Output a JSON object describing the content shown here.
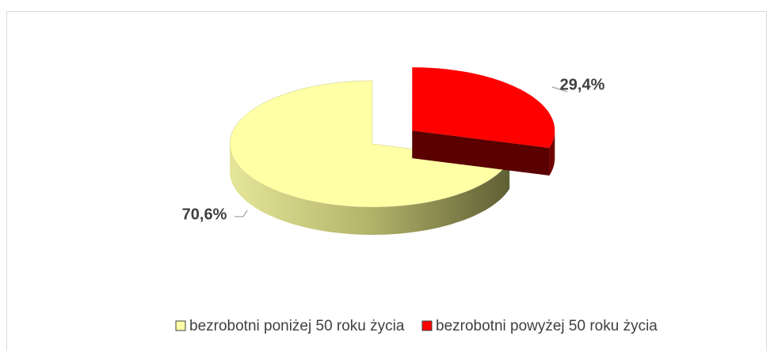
{
  "chart_data": {
    "type": "pie",
    "categories": [
      "bezrobotni poniżej 50 roku życia",
      "bezrobotni powyżej 50 roku życia"
    ],
    "values": [
      70.6,
      29.4
    ],
    "value_labels": [
      "70,6%",
      "29,4%"
    ],
    "colors": [
      "#ffffa6",
      "#ff0000"
    ],
    "legend": "bottom"
  }
}
